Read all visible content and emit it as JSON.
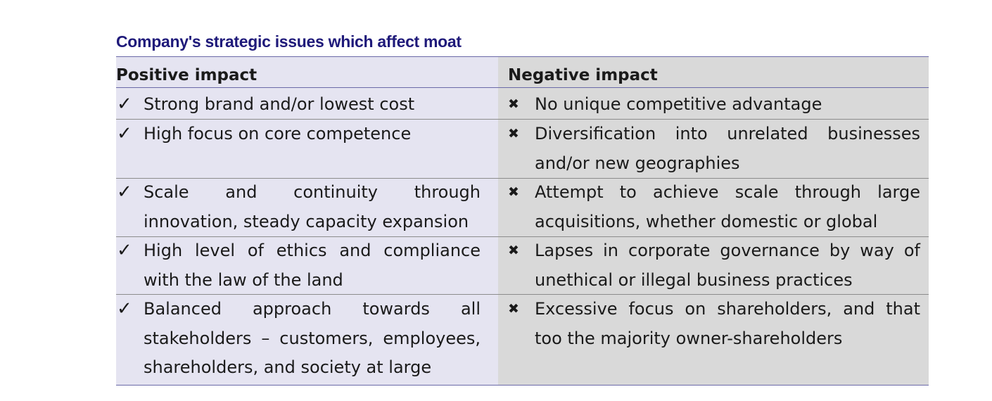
{
  "title": "Company's strategic issues which affect moat",
  "table": {
    "headers": {
      "positive": "Positive impact",
      "negative": "Negative impact"
    },
    "marks": {
      "positive": "✓",
      "negative": "✖"
    },
    "rows": [
      {
        "positive": "Strong brand and/or lowest cost",
        "negative": "No unique competitive advantage"
      },
      {
        "positive": "High focus on core competence",
        "negative": "Diversification into unrelated businesses and/or new geographies"
      },
      {
        "positive": "Scale and continuity through innovation, steady capacity expansion",
        "negative": "Attempt to achieve scale through large acquisitions, whether domestic or global"
      },
      {
        "positive": "High level of ethics and compliance with the law of the land",
        "negative": "Lapses in corporate governance by way of unethical or illegal business practices"
      },
      {
        "positive": "Balanced approach towards all stakeholders – customers, employees, shareholders, and society at large",
        "negative": "Excessive focus on shareholders, and that too the majority owner-shareholders"
      }
    ],
    "colors": {
      "title": "#1f1a7a",
      "positive_column_bg": "#e5e4f1",
      "negative_column_bg": "#d9d9d9",
      "rule": "#6b6aa8"
    }
  }
}
